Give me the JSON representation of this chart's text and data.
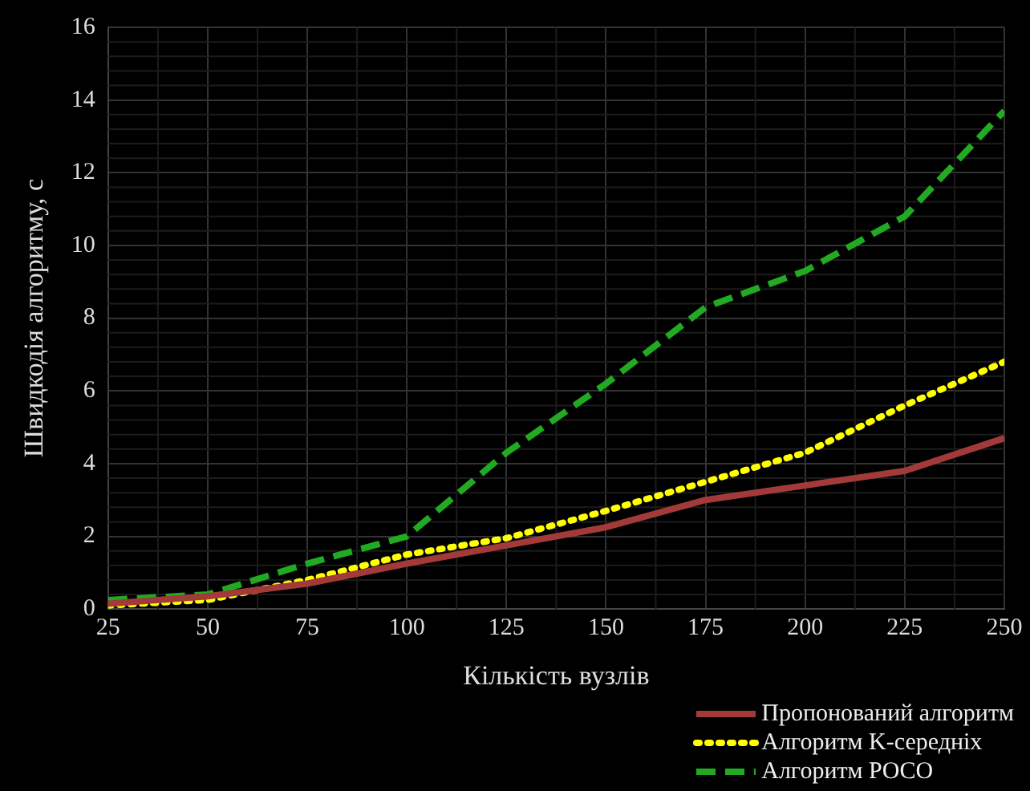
{
  "chart_data": {
    "type": "line",
    "xlabel": "Кількість вузлів",
    "ylabel": "Швидкодія алгоритму, с",
    "x": [
      25,
      50,
      75,
      100,
      125,
      150,
      175,
      200,
      225,
      250
    ],
    "series": [
      {
        "name": "Пропонований алгоритм",
        "color": "#a33a3a",
        "line_style": "solid",
        "values": [
          0.15,
          0.35,
          0.7,
          1.25,
          1.75,
          2.25,
          3.0,
          3.4,
          3.8,
          4.7
        ]
      },
      {
        "name": "Алгоритм K-середніх",
        "color": "#ffff00",
        "line_style": "dotted",
        "values": [
          0.1,
          0.25,
          0.8,
          1.5,
          1.95,
          2.7,
          3.5,
          4.3,
          5.6,
          6.8
        ]
      },
      {
        "name": "Алгоритм POCO",
        "color": "#22aa22",
        "line_style": "dashed",
        "values": [
          0.25,
          0.4,
          1.25,
          2.0,
          4.3,
          6.2,
          8.3,
          9.3,
          10.8,
          13.7
        ]
      }
    ],
    "xlim": [
      25,
      250
    ],
    "xticks": [
      25,
      50,
      75,
      100,
      125,
      150,
      175,
      200,
      225,
      250
    ],
    "ylim": [
      0,
      16
    ],
    "yticks": [
      0,
      2,
      4,
      6,
      8,
      10,
      12,
      14,
      16
    ],
    "grid": true,
    "legend": "bottom right",
    "marker": "none"
  }
}
